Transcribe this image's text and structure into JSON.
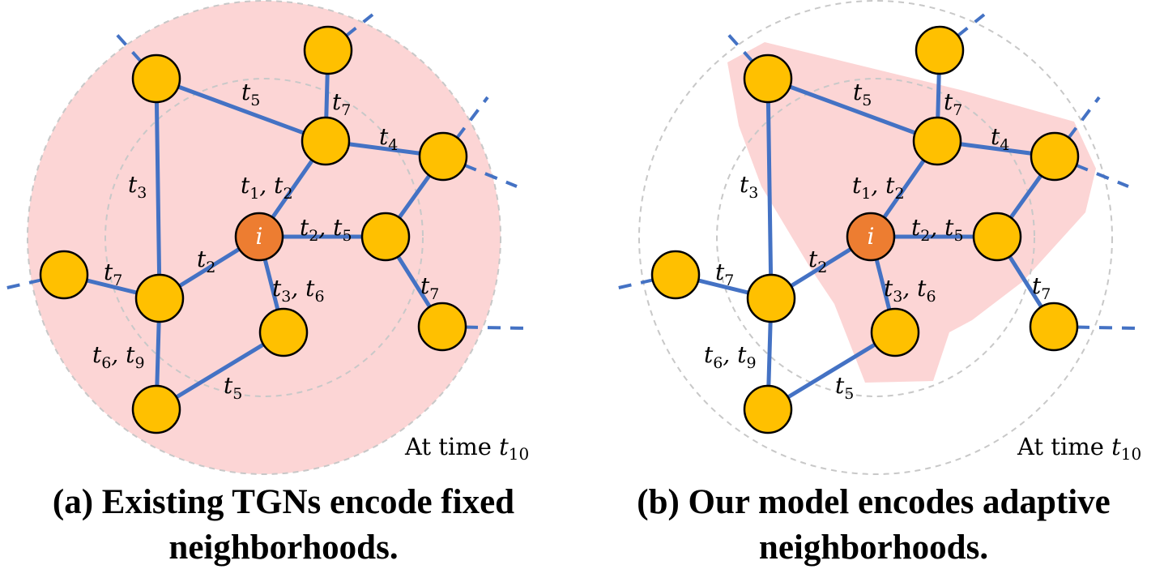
{
  "panels": [
    {
      "id": "a",
      "caption_line1": "(a) Existing TGNs encode fixed",
      "caption_line2": "neighborhoods.",
      "time_prefix": "At time ",
      "time_var": "t",
      "time_sub": "10",
      "center_label": "i",
      "highlight_color": "#FCD5D5"
    },
    {
      "id": "b",
      "caption_line1": "(b) Our model encodes adaptive",
      "caption_line2": "neighborhoods.",
      "time_prefix": "At time ",
      "time_var": "t",
      "time_sub": "10",
      "center_label": "i",
      "highlight_color": "#FCD5D5"
    }
  ],
  "edge_labels": [
    {
      "key": "t5_top",
      "parts": [
        [
          "t",
          "5"
        ]
      ]
    },
    {
      "key": "t7_top",
      "parts": [
        [
          "t",
          "7"
        ]
      ]
    },
    {
      "key": "t4",
      "parts": [
        [
          "t",
          "4"
        ]
      ]
    },
    {
      "key": "t3",
      "parts": [
        [
          "t",
          "3"
        ]
      ]
    },
    {
      "key": "t1t2",
      "parts": [
        [
          "t",
          "1"
        ],
        [
          "t",
          "2"
        ]
      ]
    },
    {
      "key": "t2t5",
      "parts": [
        [
          "t",
          "2"
        ],
        [
          "t",
          "5"
        ]
      ]
    },
    {
      "key": "t2",
      "parts": [
        [
          "t",
          "2"
        ]
      ]
    },
    {
      "key": "t7_left",
      "parts": [
        [
          "t",
          "7"
        ]
      ]
    },
    {
      "key": "t3t6",
      "parts": [
        [
          "t",
          "3"
        ],
        [
          "t",
          "6"
        ]
      ]
    },
    {
      "key": "t7_right",
      "parts": [
        [
          "t",
          "7"
        ]
      ]
    },
    {
      "key": "t6t9",
      "parts": [
        [
          "t",
          "6"
        ],
        [
          "t",
          "9"
        ]
      ]
    },
    {
      "key": "t5_bottom",
      "parts": [
        [
          "t",
          "5"
        ]
      ]
    }
  ],
  "colors": {
    "edge": "#4472C4",
    "node": "#FFC000",
    "center_node": "#ED7D31",
    "highlight": "#FCD5D5"
  }
}
